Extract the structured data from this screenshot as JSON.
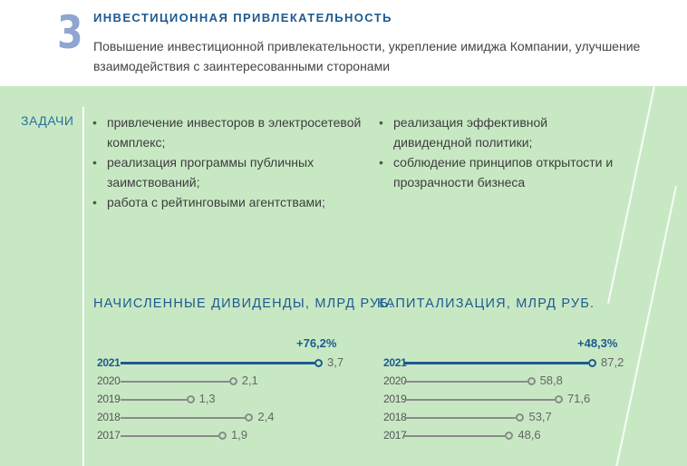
{
  "header": {
    "section_number": "3",
    "title": "ИНВЕСТИЦИОННАЯ ПРИВЛЕКАТЕЛЬНОСТЬ",
    "description": "Повышение инвестиционной привлекательности, укрепление имиджа Компании, улучшение взаимодействия с заинтересованными сторонами"
  },
  "tasks": {
    "label": "ЗАДАЧИ",
    "col1": [
      "привлечение инвесторов в электросетевой комплекс;",
      "реализация программы публичных заимствований;",
      "работа с рейтинговыми агентствами;"
    ],
    "col2": [
      "реализация эффективной дивидендной политики;",
      "соблюдение принципов открытости и прозрачности бизнеса"
    ]
  },
  "colors": {
    "accent": "#1d5a8f",
    "panel": "#c8e8c4",
    "bar": "#8a8a8a",
    "number": "#8fa6d1"
  },
  "chart_data": [
    {
      "type": "bar",
      "orientation": "horizontal",
      "title": "НАЧИСЛЕННЫЕ ДИВИДЕНДЫ, МЛРД РУБ.",
      "growth_label": "+76,2%",
      "categories": [
        "2021",
        "2020",
        "2019",
        "2018",
        "2017"
      ],
      "values": [
        3.7,
        2.1,
        1.3,
        2.4,
        1.9
      ],
      "labels": [
        "3,7",
        "2,1",
        "1,3",
        "2,4",
        "1,9"
      ],
      "highlight": "2021"
    },
    {
      "type": "bar",
      "orientation": "horizontal",
      "title": "КАПИТАЛИЗАЦИЯ, МЛРД РУБ.",
      "growth_label": "+48,3%",
      "categories": [
        "2021",
        "2020",
        "2019",
        "2018",
        "2017"
      ],
      "values": [
        87.2,
        58.8,
        71.6,
        53.7,
        48.6
      ],
      "labels": [
        "87,2",
        "58,8",
        "71,6",
        "53,7",
        "48,6"
      ],
      "highlight": "2021"
    }
  ]
}
